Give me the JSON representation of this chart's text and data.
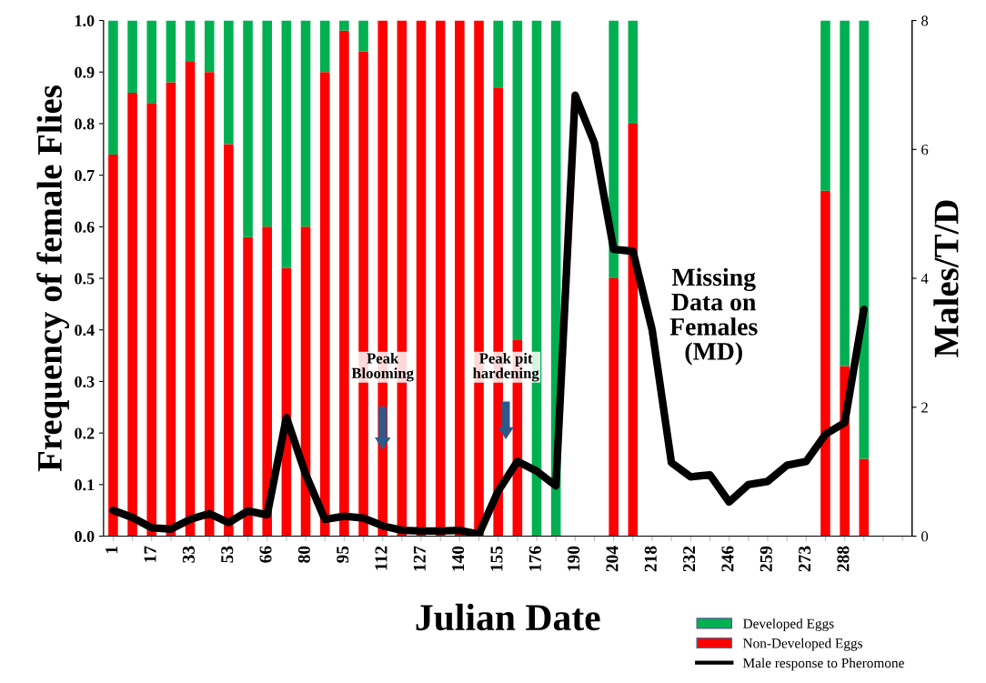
{
  "chart_data": {
    "type": "bar",
    "stacked": true,
    "xlabel": "Julian Date",
    "ylabel": "Frequency of female Flies",
    "y2label": "Males/T/D",
    "categories": [
      "1",
      null,
      "17",
      null,
      "33",
      null,
      "53",
      null,
      "66",
      null,
      "80",
      null,
      "95",
      null,
      "112",
      null,
      "127",
      null,
      "140",
      null,
      "155",
      null,
      "176",
      null,
      "190",
      null,
      "204",
      null,
      "218",
      null,
      "232",
      null,
      "246",
      null,
      "259",
      null,
      "273",
      null,
      "288",
      null,
      null,
      null
    ],
    "series": [
      {
        "name": "Non-Developed Eggs",
        "color": "#ff0000",
        "values": [
          0.74,
          0.86,
          0.84,
          0.88,
          0.92,
          0.9,
          0.76,
          0.58,
          0.6,
          0.52,
          0.6,
          0.9,
          0.98,
          0.94,
          1,
          1,
          1,
          1,
          1,
          1,
          0.87,
          0.38,
          0,
          0,
          null,
          null,
          0.5,
          0.8,
          null,
          null,
          null,
          null,
          null,
          null,
          null,
          null,
          null,
          0.67,
          0.33,
          0.15,
          null,
          null
        ]
      },
      {
        "name": "Developed Eggs",
        "color": "#00b050",
        "values": [
          0.26,
          0.14,
          0.16,
          0.12,
          0.08,
          0.1,
          0.24,
          0.42,
          0.4,
          0.48,
          0.4,
          0.1,
          0.02,
          0.06,
          0,
          0,
          0,
          0,
          0,
          0,
          0.13,
          0.62,
          1,
          1,
          null,
          null,
          0.5,
          0.2,
          null,
          null,
          null,
          null,
          null,
          null,
          null,
          null,
          null,
          0.33,
          0.67,
          0.85,
          null,
          null
        ]
      },
      {
        "name": "Male response to Pheromone",
        "type": "line",
        "axis": "y2",
        "color": "#000000",
        "values": [
          0.4,
          0.29,
          0.13,
          0.11,
          0.26,
          0.35,
          0.21,
          0.39,
          0.33,
          1.84,
          0.96,
          0.26,
          0.31,
          0.28,
          0.16,
          0.09,
          0.08,
          0.08,
          0.09,
          0.03,
          0.7,
          1.16,
          1.01,
          0.78,
          6.84,
          6.1,
          4.45,
          4.42,
          3.2,
          1.14,
          0.92,
          0.95,
          0.53,
          0.8,
          0.85,
          1.1,
          1.16,
          1.58,
          1.76,
          3.52,
          null,
          null
        ]
      }
    ],
    "ylim": [
      0,
      1
    ],
    "yticks": [
      {
        "value": 0,
        "label": "0.0"
      },
      {
        "value": 0.1,
        "label": "0.1"
      },
      {
        "value": 0.2,
        "label": "0.2"
      },
      {
        "value": 0.3,
        "label": "0.3"
      },
      {
        "value": 0.4,
        "label": "0.4"
      },
      {
        "value": 0.5,
        "label": "0.5"
      },
      {
        "value": 0.6,
        "label": "0.6"
      },
      {
        "value": 0.7,
        "label": "0.7"
      },
      {
        "value": 0.8,
        "label": "0.8"
      },
      {
        "value": 0.9,
        "label": "0.9"
      },
      {
        "value": 1,
        "label": "1.0"
      }
    ],
    "y2lim": [
      0,
      8
    ],
    "y2ticks": [
      0,
      2,
      4,
      6,
      8
    ],
    "annotations": [
      "Peak\nBlooming",
      "Peak pit\nhardening",
      "Missing\nData on\nFemales\n(MD)"
    ],
    "legend": "bottom right",
    "grid": false,
    "marker": "none",
    "line_style": "solid"
  }
}
